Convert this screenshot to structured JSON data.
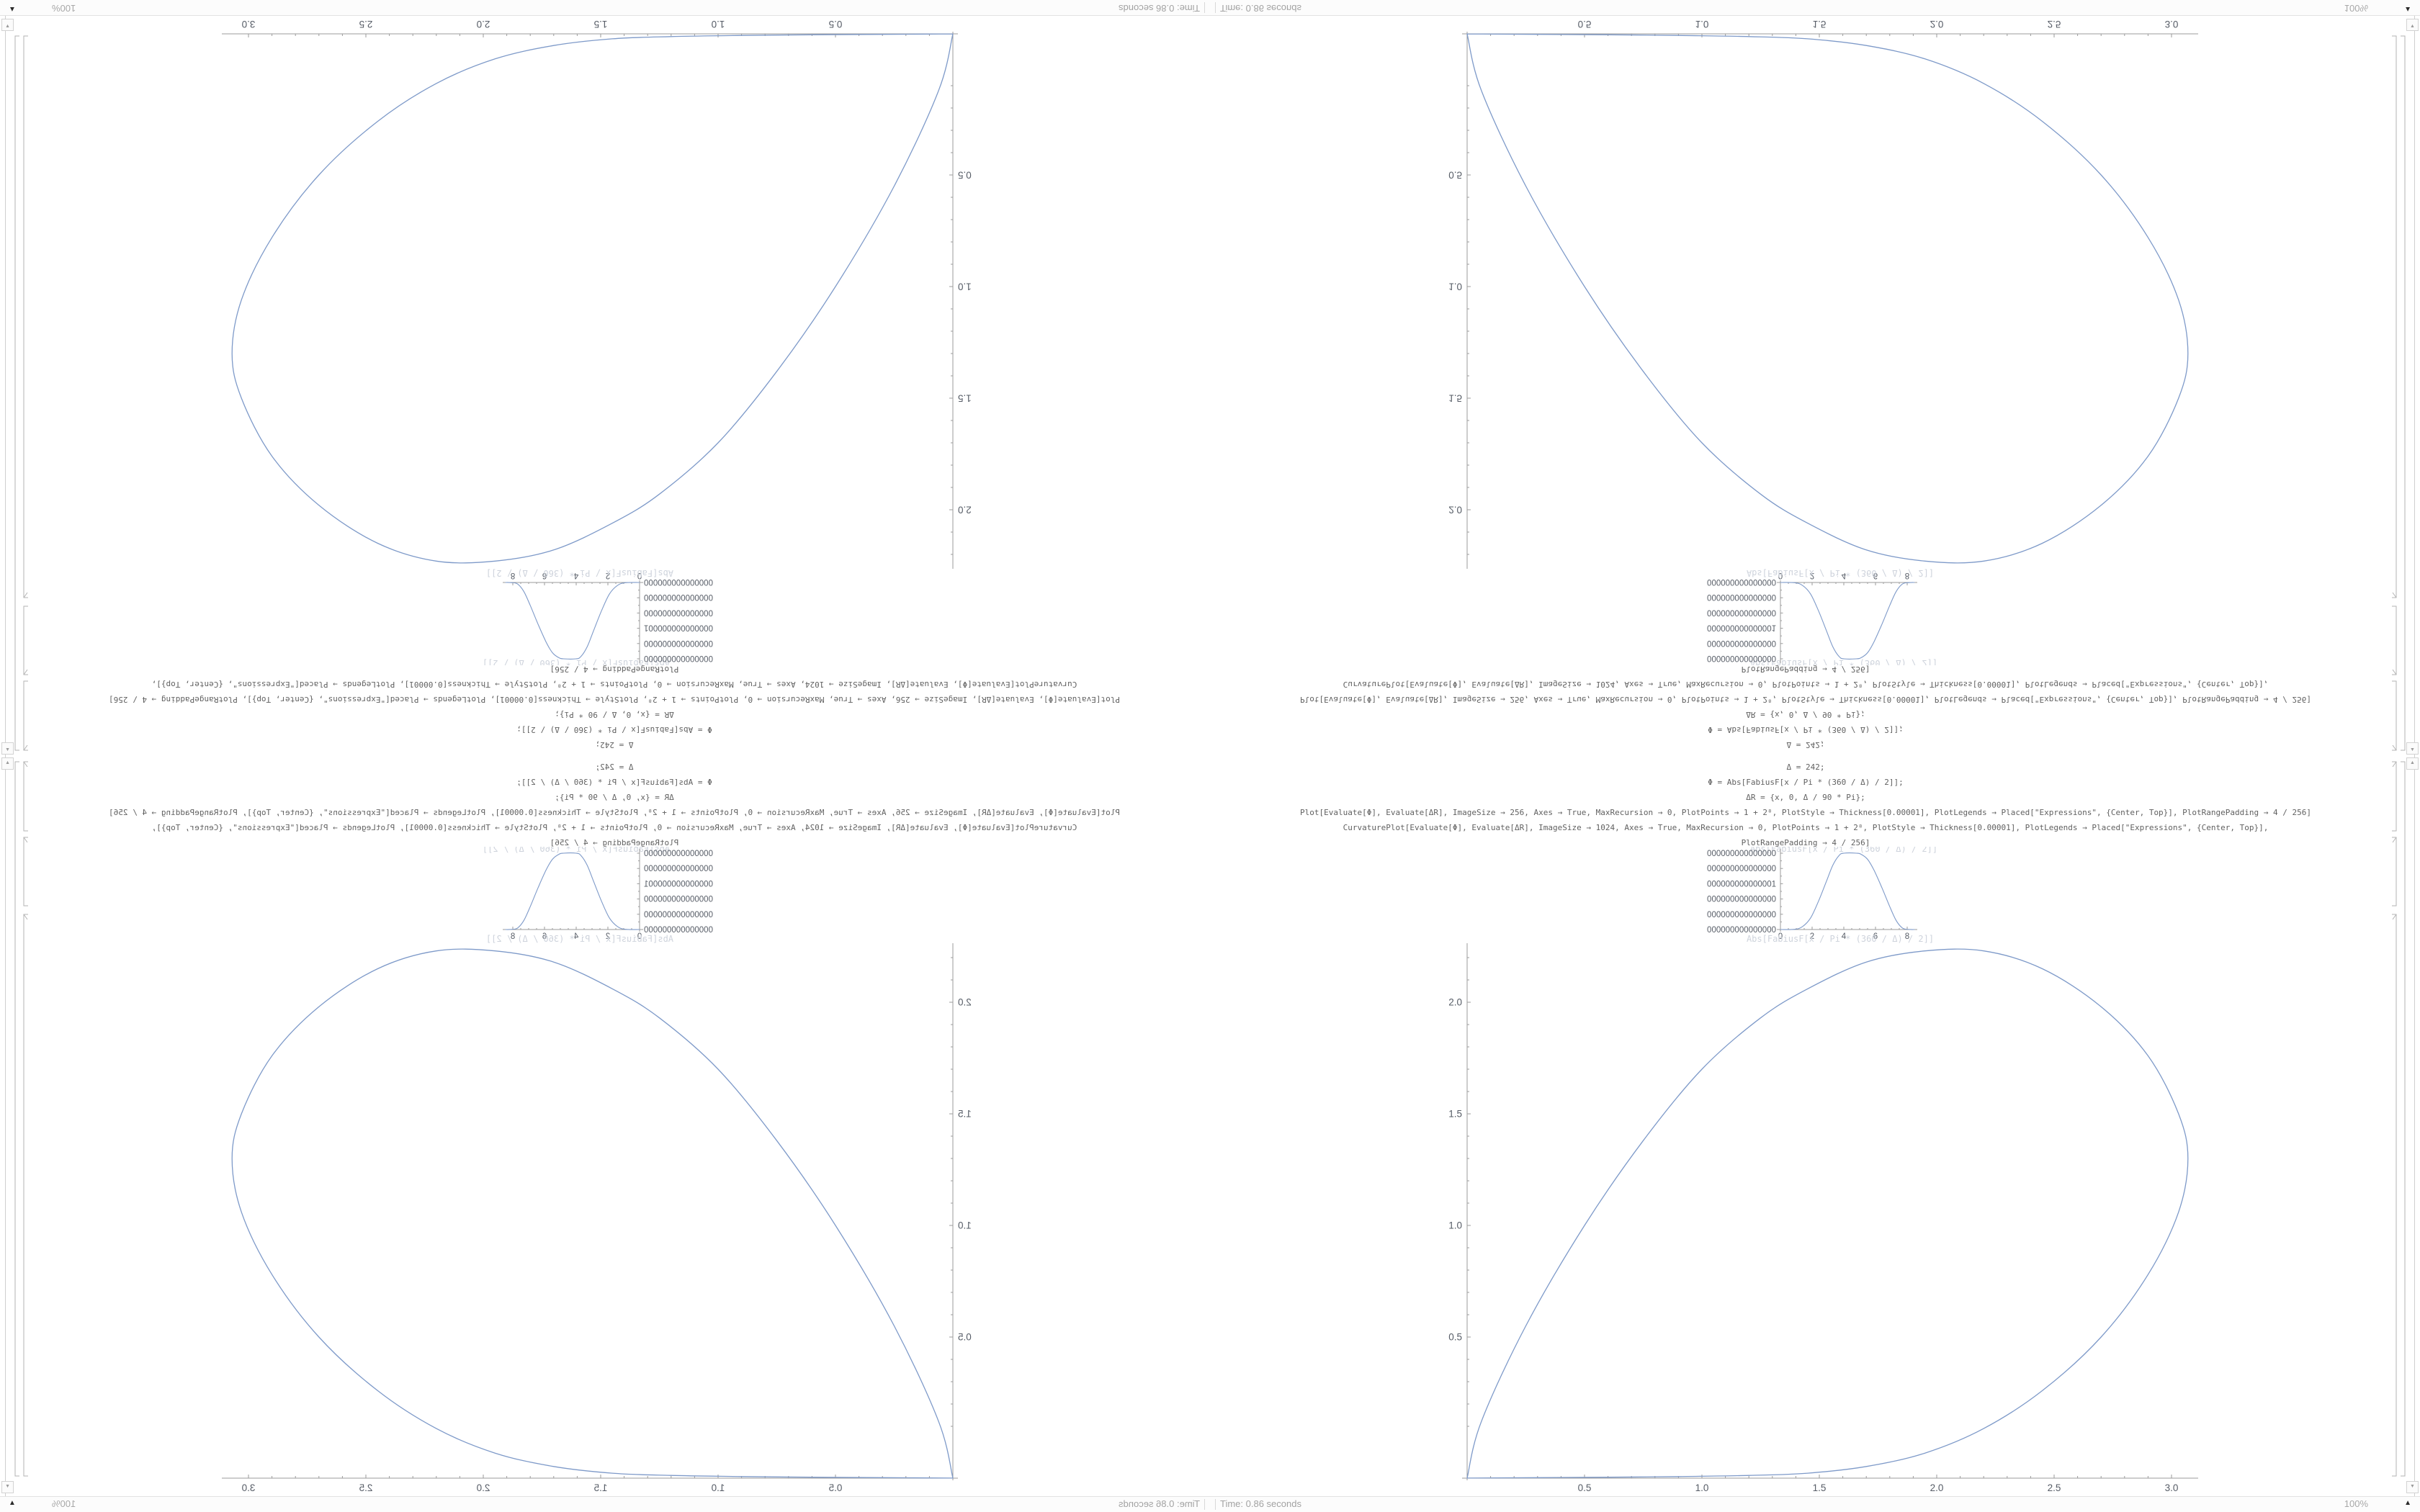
{
  "status_bar": {
    "time": "Time: 0.86 seconds"
  },
  "magnification": {
    "value": "100%"
  },
  "icons": {
    "scroll_up": "▲",
    "scroll_down": "▼",
    "magnification_menu": "▲"
  },
  "code_cell": {
    "lines": [
      "Δ = 242;",
      "Φ = Abs[FabiusF[x / Pi * (360 / Δ) / 2]];",
      "ΔR = {x, 0, Δ / 90 * Pi};",
      "Plot[Evaluate[Φ], Evaluate[ΔR], ImageSize → 256, Axes → True, MaxRecursion → 0, PlotPoints → 1 + 2⁸, PlotStyle → Thickness[0.00001], PlotLegends → Placed[\"Expressions\", {Center, Top}], PlotRangePadding → 4 / 256]",
      "CurvaturePlot[Evaluate[Φ], Evaluate[ΔR], ImageSize → 1024, Axes → True, MaxRecursion → 0, PlotPoints → 1 + 2⁸, PlotStyle → Thickness[0.00001], PlotLegends → Placed[\"Expressions\", {Center, Top}],",
      "PlotRangePadding → 4 / 256]"
    ]
  },
  "chart_data": [
    {
      "type": "line",
      "id": "small-bump-plot",
      "title": "",
      "legend": "Abs[FabiusF[x / Pi * (360 / Δ) / 2]]",
      "legend_position": "top-center",
      "xlabel": "",
      "ylabel": "",
      "xlim": [
        0,
        8.45
      ],
      "ylim": [
        0,
        1.0
      ],
      "grid": false,
      "x_tick_labels": [
        "0",
        "2",
        "4",
        "6",
        "8"
      ],
      "x_tick_values": [
        0,
        2,
        4,
        6,
        8
      ],
      "y_tick_labels": [
        "1.0000000000000000",
        "0.8000000000000000",
        "0.6000000000000001",
        "0.4000000000000000",
        "0.2000000000000000",
        "0.0000000000000000"
      ],
      "y_tick_values": [
        1.0,
        0.8,
        0.6,
        0.4,
        0.2,
        0.0
      ],
      "series": [
        {
          "name": "Abs[FabiusF[x / Pi * (360 / Δ) / 2]]",
          "points": [
            [
              0,
              0
            ],
            [
              0.9,
              0.003
            ],
            [
              1.4,
              0.04
            ],
            [
              1.9,
              0.15
            ],
            [
              2.4,
              0.37
            ],
            [
              2.9,
              0.63
            ],
            [
              3.3,
              0.84
            ],
            [
              3.7,
              0.97
            ],
            [
              4.0,
              1.0
            ],
            [
              4.8,
              1.0
            ],
            [
              5.1,
              0.985
            ],
            [
              5.5,
              0.92
            ],
            [
              5.9,
              0.78
            ],
            [
              6.4,
              0.55
            ],
            [
              6.9,
              0.3
            ],
            [
              7.3,
              0.12
            ],
            [
              7.7,
              0.02
            ],
            [
              8.1,
              0.002
            ],
            [
              8.45,
              0
            ]
          ]
        }
      ]
    },
    {
      "type": "line",
      "id": "large-teardrop-curvature-plot",
      "title": "",
      "legend": "Abs[FabiusF[x / Pi * (360 / Δ) / 2]]",
      "legend_position": "top-center",
      "xlabel": "",
      "ylabel": "",
      "xlim": [
        0,
        3.07
      ],
      "ylim": [
        -0.132,
        2.24
      ],
      "grid": false,
      "x_tick_labels": [
        "0.5",
        "1.0",
        "1.5",
        "2.0",
        "2.5",
        "3.0"
      ],
      "x_tick_values": [
        0.5,
        1.0,
        1.5,
        2.0,
        2.5,
        3.0
      ],
      "y_tick_labels": [
        "0.5",
        "1.0",
        "1.5",
        "2.0"
      ],
      "y_tick_values": [
        0.5,
        1.0,
        1.5,
        2.0
      ],
      "series": [
        {
          "name": "Abs[FabiusF[x / Pi * (360 / Δ) / 2]]",
          "points": [
            [
              0,
              -0.132
            ],
            [
              0.06,
              0.12
            ],
            [
              0.25,
              0.55
            ],
            [
              0.5,
              1.0
            ],
            [
              0.75,
              1.38
            ],
            [
              1.0,
              1.7
            ],
            [
              1.25,
              1.93
            ],
            [
              1.45,
              2.06
            ],
            [
              1.7,
              2.18
            ],
            [
              1.95,
              2.23
            ],
            [
              2.2,
              2.23
            ],
            [
              2.45,
              2.15
            ],
            [
              2.7,
              1.98
            ],
            [
              2.9,
              1.76
            ],
            [
              3.03,
              1.5
            ],
            [
              3.07,
              1.3
            ],
            [
              3.03,
              1.06
            ],
            [
              2.9,
              0.78
            ],
            [
              2.7,
              0.5
            ],
            [
              2.45,
              0.26
            ],
            [
              2.2,
              0.09
            ],
            [
              1.95,
              -0.02
            ],
            [
              1.7,
              -0.08
            ],
            [
              1.45,
              -0.11
            ],
            [
              1.2,
              -0.12
            ],
            [
              0.9,
              -0.125
            ],
            [
              0.6,
              -0.128
            ],
            [
              0.3,
              -0.13
            ],
            [
              0,
              -0.132
            ]
          ]
        }
      ]
    }
  ],
  "colors": {
    "curve": "#7e9ac9",
    "axis": "#9b9b9b",
    "tick_label": "#565c66",
    "legend_text": "#ced3dc",
    "bracket": "#b3b3b3",
    "status_text": "#a2a2a2"
  }
}
